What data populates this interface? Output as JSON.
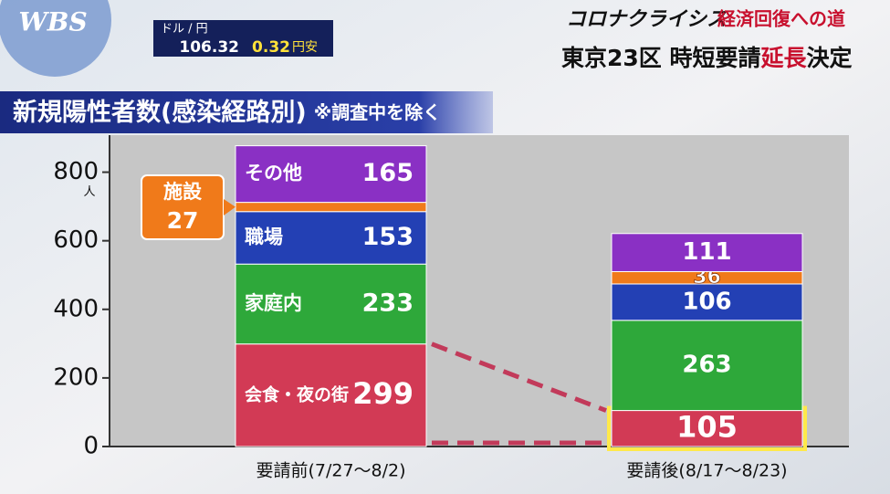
{
  "header": {
    "logo": "WBS",
    "fx_label": "ドル / 円",
    "fx_rate": "106.32",
    "fx_change": "0.32",
    "fx_direction": "円安",
    "series_title": "コロナクライシス",
    "series_subtitle": "経済回復への道",
    "headline_a": "東京23区 時短要請",
    "headline_b": "延長",
    "headline_c": "決定"
  },
  "chart_data": {
    "type": "stacked_bar",
    "title": "新規陽性者数(感染経路別)",
    "subtitle": "※調査中を除く",
    "y_unit": "人",
    "categories": [
      "要請前(7/27〜8/2)",
      "要請後(8/17〜8/23)"
    ],
    "series": [
      {
        "name": "会食・夜の街",
        "color": "#d23a55",
        "values": [
          299,
          105
        ]
      },
      {
        "name": "家庭内",
        "color": "#2ea83a",
        "values": [
          233,
          263
        ]
      },
      {
        "name": "職場",
        "color": "#2340b4",
        "values": [
          153,
          106
        ]
      },
      {
        "name": "施設",
        "color": "#f07a1a",
        "values": [
          27,
          36
        ]
      },
      {
        "name": "その他",
        "color": "#8a30c4",
        "values": [
          165,
          111
        ]
      }
    ],
    "ylim": [
      0,
      900
    ],
    "yticks": [
      0,
      200,
      400,
      600,
      800
    ],
    "grid": false
  }
}
